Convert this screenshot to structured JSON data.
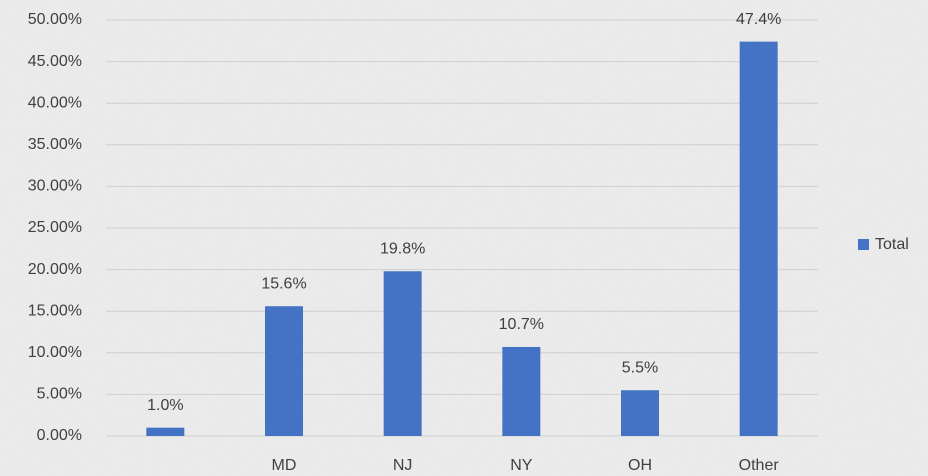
{
  "chart_data": {
    "type": "bar",
    "categories": [
      null,
      "MD",
      "NJ",
      "NY",
      "OH",
      "Other"
    ],
    "series": [
      {
        "name": "Total",
        "color": "#4472c4",
        "values": [
          1.0,
          15.6,
          19.8,
          10.7,
          5.5,
          47.4
        ],
        "value_labels": [
          "1.0%",
          "15.6%",
          "19.8%",
          "10.7%",
          "5.5%",
          "47.4%"
        ]
      }
    ],
    "ylim": [
      0,
      50
    ],
    "yticks": [
      {
        "value": 0,
        "label": "0.00%"
      },
      {
        "value": 5,
        "label": "5.00%"
      },
      {
        "value": 10,
        "label": "10.00%"
      },
      {
        "value": 15,
        "label": "15.00%"
      },
      {
        "value": 20,
        "label": "20.00%"
      },
      {
        "value": 25,
        "label": "25.00%"
      },
      {
        "value": 30,
        "label": "30.00%"
      },
      {
        "value": 35,
        "label": "35.00%"
      },
      {
        "value": 40,
        "label": "40.00%"
      },
      {
        "value": 45,
        "label": "45.00%"
      },
      {
        "value": 50,
        "label": "50.00%"
      }
    ],
    "grid": true,
    "legend": "right"
  }
}
